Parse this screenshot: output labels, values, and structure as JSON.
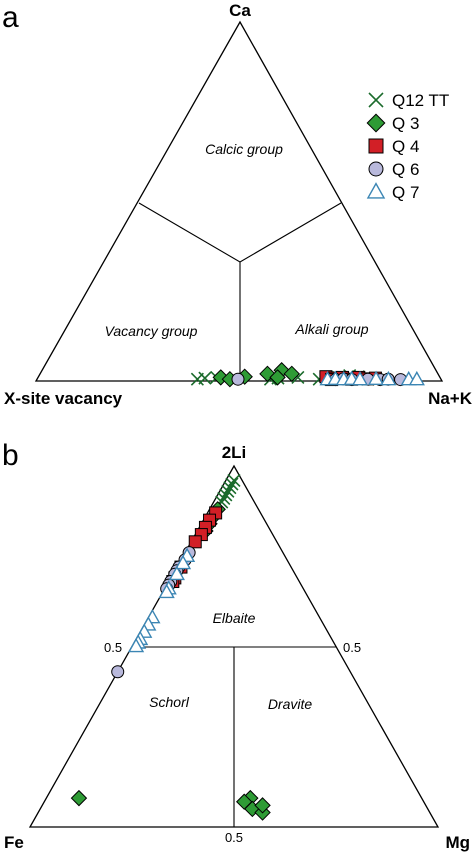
{
  "chart_data": [
    {
      "panel": "a",
      "type": "scatter",
      "subtype": "ternary",
      "vertices": {
        "top": "Ca",
        "left": "X-site vacancy",
        "right": "Na+K"
      },
      "fields": [
        "Calcic group",
        "Vacancy group",
        "Alkali group"
      ],
      "legend": {
        "placement": "top-right",
        "entries": [
          {
            "name": "Q12 TT",
            "marker": "x",
            "color": "#1b6b2c"
          },
          {
            "name": "Q 3",
            "marker": "diamond",
            "color": "#2e9b35"
          },
          {
            "name": "Q 4",
            "marker": "square",
            "color": "#d21f26"
          },
          {
            "name": "Q 6",
            "marker": "circle",
            "color": "#b9b9dc"
          },
          {
            "name": "Q 7",
            "marker": "triangle",
            "color": "#3c86b4"
          }
        ]
      },
      "series": [
        {
          "name": "Q12 TT",
          "marker": "x",
          "points": [
            [
              0.005,
              0.6,
              0.395
            ],
            [
              0.008,
              0.58,
              0.412
            ],
            [
              0.01,
              0.55,
              0.44
            ],
            [
              0.005,
              0.42,
              0.575
            ],
            [
              0.008,
              0.4,
              0.592
            ],
            [
              0.01,
              0.35,
              0.64
            ],
            [
              0.005,
              0.3,
              0.695
            ],
            [
              0.01,
              0.25,
              0.74
            ],
            [
              0.012,
              0.2,
              0.788
            ],
            [
              0.005,
              0.18,
              0.815
            ],
            [
              0.015,
              0.22,
              0.765
            ]
          ]
        },
        {
          "name": "Q 3",
          "marker": "diamond",
          "points": [
            [
              0.01,
              0.54,
              0.45
            ],
            [
              0.005,
              0.52,
              0.475
            ],
            [
              0.012,
              0.48,
              0.508
            ],
            [
              0.02,
              0.42,
              0.56
            ],
            [
              0.03,
              0.38,
              0.59
            ],
            [
              0.02,
              0.36,
              0.62
            ],
            [
              0.01,
              0.4,
              0.59
            ]
          ]
        },
        {
          "name": "Q 4",
          "marker": "square",
          "points": [
            [
              0.012,
              0.28,
              0.708
            ],
            [
              0.008,
              0.26,
              0.732
            ],
            [
              0.01,
              0.24,
              0.75
            ],
            [
              0.005,
              0.22,
              0.775
            ],
            [
              0.01,
              0.2,
              0.79
            ],
            [
              0.006,
              0.18,
              0.814
            ],
            [
              0.008,
              0.16,
              0.832
            ],
            [
              0.004,
              0.27,
              0.726
            ]
          ]
        },
        {
          "name": "Q 6",
          "marker": "circle",
          "points": [
            [
              0.005,
              0.5,
              0.495
            ],
            [
              0.004,
              0.26,
              0.736
            ],
            [
              0.006,
              0.24,
              0.754
            ],
            [
              0.004,
              0.22,
              0.776
            ],
            [
              0.005,
              0.18,
              0.815
            ],
            [
              0.004,
              0.15,
              0.846
            ],
            [
              0.005,
              0.13,
              0.865
            ],
            [
              0.004,
              0.1,
              0.896
            ]
          ]
        },
        {
          "name": "Q 7",
          "marker": "triangle",
          "points": [
            [
              0.004,
              0.28,
              0.716
            ],
            [
              0.005,
              0.26,
              0.735
            ],
            [
              0.004,
              0.24,
              0.756
            ],
            [
              0.005,
              0.22,
              0.775
            ],
            [
              0.004,
              0.2,
              0.796
            ],
            [
              0.005,
              0.16,
              0.835
            ],
            [
              0.004,
              0.13,
              0.866
            ],
            [
              0.004,
              0.08,
              0.916
            ],
            [
              0.004,
              0.06,
              0.936
            ]
          ]
        }
      ]
    },
    {
      "panel": "b",
      "type": "scatter",
      "subtype": "ternary",
      "vertices": {
        "top": "2Li",
        "left": "Fe",
        "right": "Mg"
      },
      "fields": [
        "Elbaite",
        "Schorl",
        "Dravite"
      ],
      "tick_labels": {
        "left_edge": "0.5",
        "right_edge": "0.5",
        "bottom_edge": "0.5"
      },
      "series": [
        {
          "name": "Q12 TT",
          "marker": "x",
          "points": [
            [
              0.96,
              0.02,
              0.02
            ],
            [
              0.95,
              0.03,
              0.02
            ],
            [
              0.94,
              0.04,
              0.02
            ],
            [
              0.93,
              0.05,
              0.02
            ],
            [
              0.92,
              0.06,
              0.02
            ],
            [
              0.91,
              0.07,
              0.02
            ],
            [
              0.9,
              0.08,
              0.02
            ]
          ]
        },
        {
          "name": "Q 3",
          "marker": "diamond",
          "points": [
            [
              0.88,
              0.1,
              0.02
            ],
            [
              0.86,
              0.12,
              0.02
            ],
            [
              0.84,
              0.14,
              0.02
            ],
            [
              0.82,
              0.16,
              0.02
            ],
            [
              0.08,
              0.84,
              0.08
            ],
            [
              0.08,
              0.42,
              0.5
            ],
            [
              0.05,
              0.43,
              0.52
            ],
            [
              0.04,
              0.41,
              0.55
            ],
            [
              0.06,
              0.4,
              0.54
            ],
            [
              0.07,
              0.44,
              0.49
            ]
          ]
        },
        {
          "name": "Q 4",
          "marker": "square",
          "points": [
            [
              0.87,
              0.11,
              0.02
            ],
            [
              0.85,
              0.135,
              0.015
            ],
            [
              0.83,
              0.155,
              0.015
            ],
            [
              0.81,
              0.175,
              0.015
            ],
            [
              0.79,
              0.2,
              0.01
            ],
            [
              0.72,
              0.27,
              0.01
            ],
            [
              0.69,
              0.3,
              0.01
            ],
            [
              0.68,
              0.31,
              0.01
            ]
          ]
        },
        {
          "name": "Q 6",
          "marker": "circle",
          "points": [
            [
              0.76,
              0.23,
              0.01
            ],
            [
              0.74,
              0.25,
              0.01
            ],
            [
              0.72,
              0.275,
              0.005
            ],
            [
              0.71,
              0.285,
              0.005
            ],
            [
              0.7,
              0.295,
              0.005
            ],
            [
              0.68,
              0.315,
              0.005
            ],
            [
              0.67,
              0.325,
              0.005
            ],
            [
              0.66,
              0.335,
              0.005
            ],
            [
              0.43,
              0.57,
              0.0
            ]
          ]
        },
        {
          "name": "Q 7",
          "marker": "triangle",
          "points": [
            [
              0.75,
              0.24,
              0.01
            ],
            [
              0.73,
              0.26,
              0.01
            ],
            [
              0.7,
              0.29,
              0.01
            ],
            [
              0.66,
              0.33,
              0.01
            ],
            [
              0.65,
              0.34,
              0.01
            ],
            [
              0.58,
              0.41,
              0.01
            ],
            [
              0.56,
              0.43,
              0.01
            ],
            [
              0.54,
              0.45,
              0.01
            ],
            [
              0.52,
              0.47,
              0.01
            ],
            [
              0.51,
              0.48,
              0.01
            ],
            [
              0.5,
              0.49,
              0.01
            ]
          ]
        }
      ]
    }
  ]
}
